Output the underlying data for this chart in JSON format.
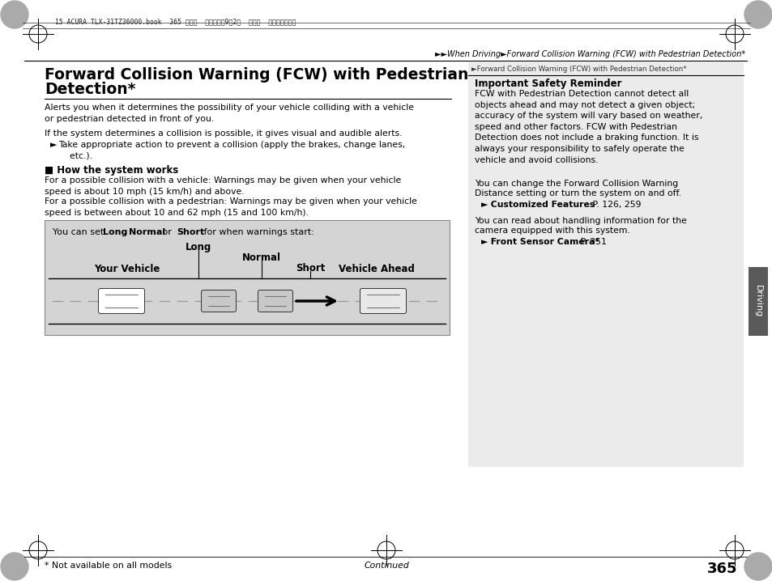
{
  "page_bg": "#ffffff",
  "page_number": "365",
  "header_text": "15 ACURA TLX-31TZ36000.book  365 ページ  ２０１４年9月2日  火曜日  午後５時２２分",
  "nav_text": "►►When Driving►Forward Collision Warning (FCW) with Pedestrian Detection*",
  "main_title_line1": "Forward Collision Warning (FCW) with Pedestrian",
  "main_title_line2": "Detection*",
  "para1": "Alerts you when it determines the possibility of your vehicle colliding with a vehicle\nor pedestrian detected in front of you.",
  "para2": "If the system determines a collision is possible, it gives visual and audible alerts.",
  "bullet1_arrow": "►",
  "bullet1_text": "Take appropriate action to prevent a collision (apply the brakes, change lanes,\n    etc.).",
  "section_title": "■ How the system works",
  "para3": "For a possible collision with a vehicle: Warnings may be given when your vehicle\nspeed is about 10 mph (15 km/h) and above.",
  "para4": "For a possible collision with a pedestrian: Warnings may be given when your vehicle\nspeed is between about 10 and 62 mph (15 and 100 km/h).",
  "diagram_caption_plain": "You can set ",
  "diagram_caption_bold1": "Long",
  "diagram_caption_sep1": ", ",
  "diagram_caption_bold2": "Normal",
  "diagram_caption_sep2": " or ",
  "diagram_caption_bold3": "Short",
  "diagram_caption_end": " for when warnings start:",
  "diagram_label_long": "Long",
  "diagram_label_normal": "Normal",
  "diagram_label_short": "Short",
  "diagram_label_your_vehicle": "Your Vehicle",
  "diagram_label_vehicle_ahead": "Vehicle Ahead",
  "right_col_header": "►Forward Collision Warning (FCW) with Pedestrian Detection*",
  "right_safety_title": "Important Safety Reminder",
  "right_safety_body": "FCW with Pedestrian Detection cannot detect all\nobjects ahead and may not detect a given object;\naccuracy of the system will vary based on weather,\nspeed and other factors. FCW with Pedestrian\nDetection does not include a braking function. It is\nalways your responsibility to safely operate the\nvehicle and avoid collisions.",
  "right_para1a": "You can change the Forward Collision Warning",
  "right_para1b": "Distance setting or turn the system on and off.",
  "right_ref1_arrow": "►",
  "right_ref1_bold": " Customized Features",
  "right_ref1_plain": " P. 126, 259",
  "right_para2a": "You can read about handling information for the",
  "right_para2b": "camera equipped with this system.",
  "right_ref2_arrow": "►",
  "right_ref2_bold": " Front Sensor Camera*",
  "right_ref2_plain": " P. 351",
  "footer_note": "* Not available on all models",
  "footer_continued": "Continued",
  "tab_label": "Driving",
  "diagram_bg": "#d4d4d4",
  "right_col_bg": "#ebebeb",
  "tab_bg": "#5a5a5a",
  "tab_text_color": "#ffffff",
  "crosshair_color": "#000000",
  "dot_color": "#888888"
}
